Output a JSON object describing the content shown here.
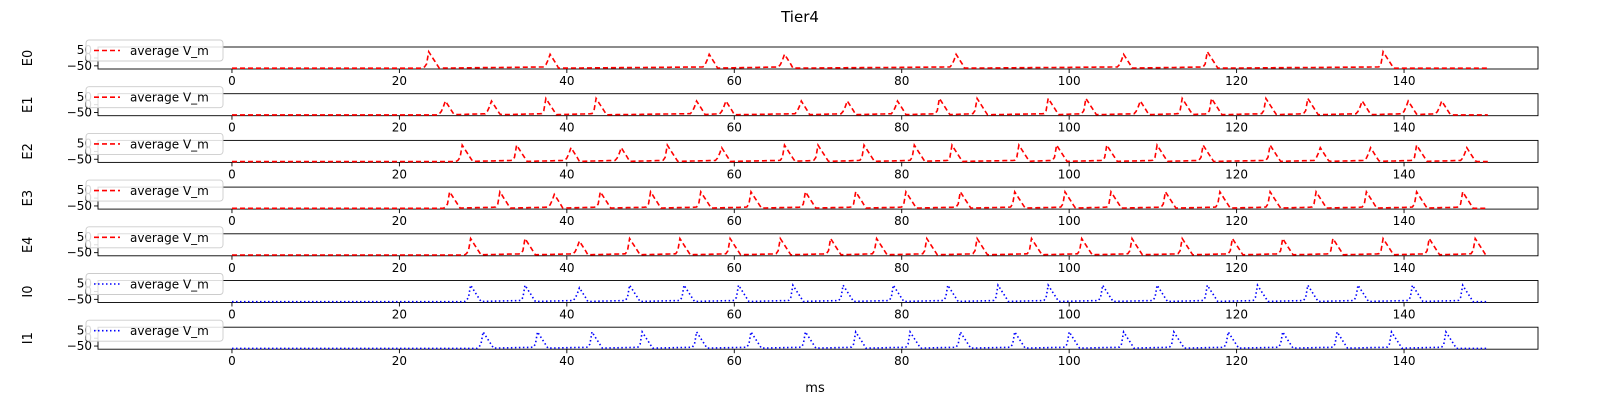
{
  "figure": {
    "title": "Tier4",
    "xlabel": "ms"
  },
  "chart_data": {
    "type": "line",
    "xlim": [
      -16,
      156
    ],
    "ylim": [
      -70,
      70
    ],
    "x_ticks": [
      0,
      20,
      40,
      60,
      80,
      100,
      120,
      140
    ],
    "y_ticks": [
      50,
      0,
      -50
    ],
    "x_range": [
      0,
      150
    ],
    "baseline_mV": -65,
    "peak_mV": 40,
    "legend_placement": "upper-left",
    "panels": [
      {
        "ylabel": "E0",
        "legend": "average V_m",
        "color": "#ff0000",
        "linestyle": "dashed",
        "spike_times": [
          23.5,
          37.8,
          56.8,
          65.8,
          86.3,
          106.3,
          116.5,
          137.5
        ]
      },
      {
        "ylabel": "E1",
        "legend": "average V_m",
        "color": "#ff0000",
        "linestyle": "dashed",
        "spike_times": [
          25.3,
          30.8,
          37.5,
          43.5,
          55.3,
          58.8,
          67.8,
          73.3,
          79.3,
          84.5,
          89.0,
          97.5,
          102.0,
          108.3,
          113.5,
          117.0,
          123.5,
          128.5,
          134.8,
          140.3,
          144.3
        ]
      },
      {
        "ylabel": "E2",
        "legend": "average V_m",
        "color": "#ff0000",
        "linestyle": "dashed",
        "spike_times": [
          27.5,
          34.0,
          40.3,
          46.3,
          52.0,
          58.3,
          66.0,
          70.0,
          75.5,
          81.5,
          86.0,
          94.0,
          98.5,
          104.5,
          110.5,
          116.0,
          124.0,
          129.8,
          135.8,
          141.5,
          147.3
        ]
      },
      {
        "ylabel": "E3",
        "legend": "average V_m",
        "color": "#ff0000",
        "linestyle": "dashed",
        "spike_times": [
          26.0,
          32.0,
          38.3,
          44.0,
          50.0,
          56.0,
          62.0,
          68.5,
          74.5,
          80.5,
          87.0,
          93.5,
          99.5,
          105.0,
          111.5,
          118.0,
          124.0,
          129.5,
          135.5,
          141.5,
          147.0
        ]
      },
      {
        "ylabel": "E4",
        "legend": "average V_m",
        "color": "#ff0000",
        "linestyle": "dashed",
        "spike_times": [
          28.5,
          35.0,
          41.3,
          47.5,
          53.5,
          59.5,
          65.5,
          71.5,
          77.0,
          83.0,
          89.0,
          95.5,
          101.5,
          107.5,
          113.5,
          119.5,
          125.5,
          131.5,
          137.5,
          143.0,
          148.5
        ]
      },
      {
        "ylabel": "I0",
        "legend": "average V_m",
        "color": "#0000ff",
        "linestyle": "dotted",
        "spike_times": [
          28.5,
          35.0,
          41.3,
          47.5,
          54.0,
          60.5,
          67.0,
          73.0,
          79.0,
          85.5,
          91.5,
          97.5,
          104.0,
          110.5,
          116.5,
          122.5,
          128.5,
          134.5,
          141.0,
          147.0
        ]
      },
      {
        "ylabel": "I1",
        "legend": "average V_m",
        "color": "#0000ff",
        "linestyle": "dotted",
        "spike_times": [
          30.0,
          36.5,
          43.0,
          49.0,
          55.5,
          62.0,
          68.5,
          74.5,
          81.0,
          87.0,
          93.5,
          100.0,
          106.5,
          112.5,
          119.0,
          125.5,
          132.0,
          138.5,
          145.0
        ]
      }
    ]
  }
}
